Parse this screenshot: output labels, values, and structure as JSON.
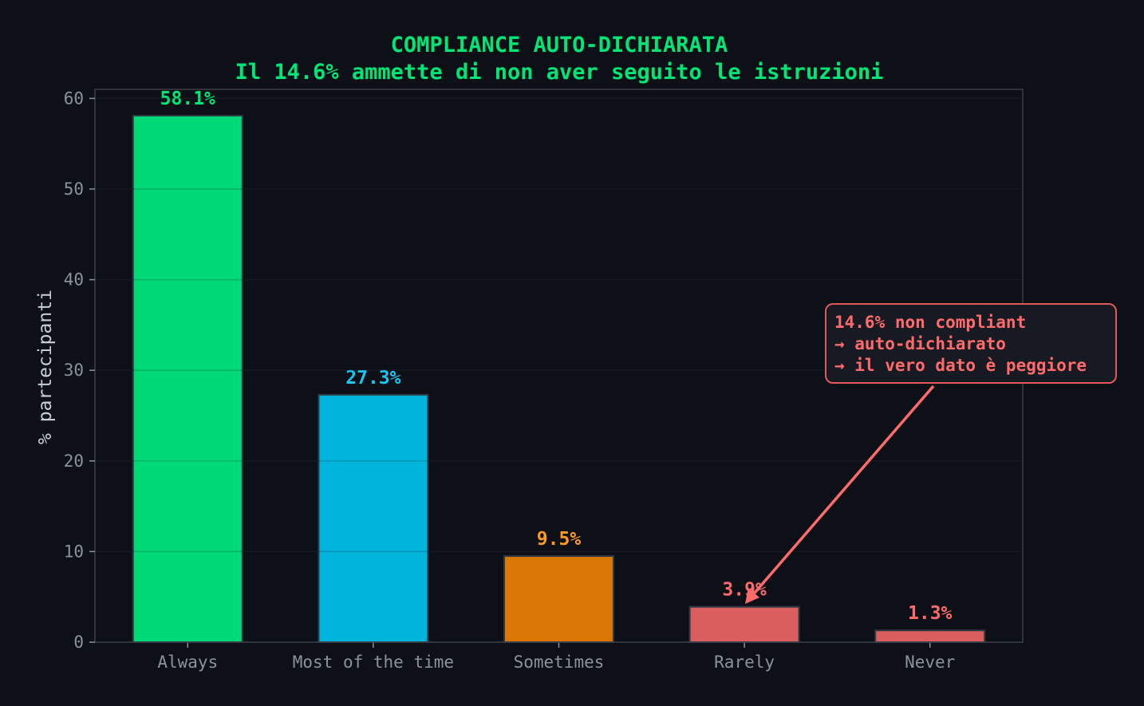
{
  "chart_data": {
    "type": "bar",
    "title": "COMPLIANCE AUTO-DICHIARATA",
    "subtitle": "Il 14.6% ammette di non aver seguito le istruzioni",
    "xlabel": "",
    "ylabel": "% partecipanti",
    "categories": [
      "Always",
      "Most of the time",
      "Sometimes",
      "Rarely",
      "Never"
    ],
    "values": [
      58.1,
      27.3,
      9.5,
      3.9,
      1.3
    ],
    "value_labels": [
      "58.1%",
      "27.3%",
      "9.5%",
      "3.9%",
      "1.3%"
    ],
    "colors": [
      "#00d977",
      "#00b4dc",
      "#db7704",
      "#db5e5e",
      "#db5e5e"
    ],
    "label_colors": [
      "#00e676",
      "#18c8f0",
      "#ff9a1f",
      "#ff6b6b",
      "#ff6b6b"
    ],
    "ylim": [
      0,
      61
    ],
    "yticks": [
      0,
      10,
      20,
      30,
      40,
      50,
      60
    ],
    "grid": true,
    "legend": null,
    "annotation": {
      "lines": [
        "14.6% non compliant",
        "→ auto-dichiarato",
        "→ il vero dato è peggiore"
      ],
      "points_to": "Rarely",
      "color": "#ff6b6b"
    }
  },
  "colors": {
    "background": "#0e1018",
    "title": "#00e676",
    "axis": "#3a3f48",
    "tick_text": "#8b929c"
  }
}
